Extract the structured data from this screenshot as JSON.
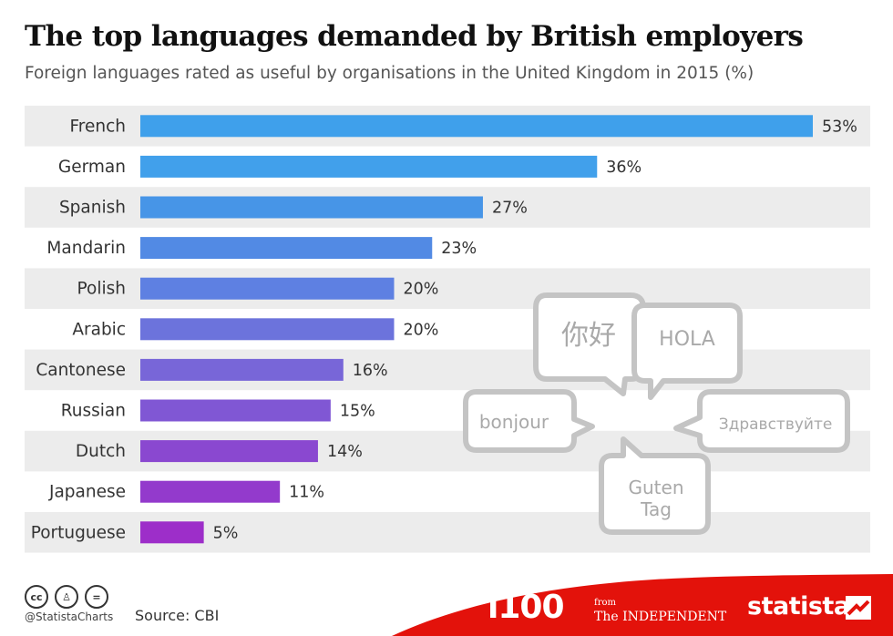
{
  "title": "The top languages demanded by British employers",
  "subtitle": "Foreign languages rated as useful by organisations in the United Kingdom in 2015 (%)",
  "chart_data": {
    "type": "bar",
    "orientation": "horizontal",
    "categories": [
      "French",
      "German",
      "Spanish",
      "Mandarin",
      "Polish",
      "Arabic",
      "Cantonese",
      "Russian",
      "Dutch",
      "Japanese",
      "Portuguese"
    ],
    "values": [
      53,
      36,
      27,
      23,
      20,
      20,
      16,
      15,
      14,
      11,
      5
    ],
    "value_suffix": "%",
    "xlim": [
      0,
      53
    ],
    "grid": false,
    "colors": [
      "#3fa0eb",
      "#41a0eb",
      "#4795e7",
      "#528ae4",
      "#5e80e2",
      "#6c73dc",
      "#7866d8",
      "#8057d4",
      "#8a48d0",
      "#933acc",
      "#9d2ec9"
    ]
  },
  "bubbles": {
    "mandarin_word": "你好",
    "spanish_word": "HOLA",
    "french_word": "bonjour",
    "russian_word": "Здравствуйте",
    "german_word_1": "Guten",
    "german_word_2": "Tag"
  },
  "footer": {
    "handle": "@StatistaCharts",
    "source": "Source: CBI",
    "icons": [
      "cc-icon",
      "attribution-icon",
      "no-derivatives-icon"
    ],
    "logo_i100": "i100",
    "logo_from": "from",
    "logo_independent": "The INDEPENDENT",
    "logo_statista": "statista",
    "band_color": "#e3120b"
  }
}
